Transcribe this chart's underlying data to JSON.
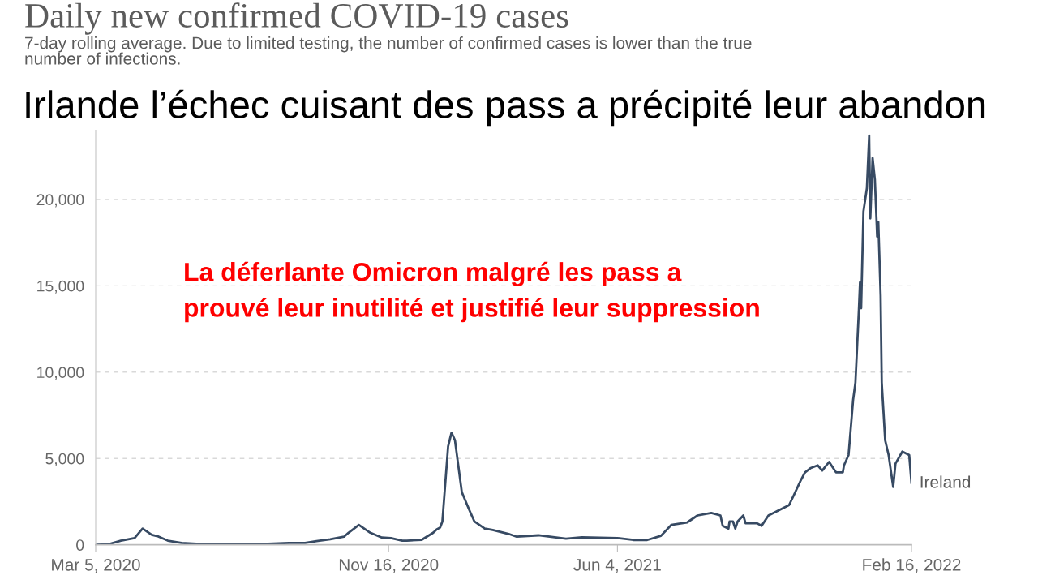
{
  "chart_data": {
    "type": "line",
    "title": "Daily new confirmed COVID-19 cases",
    "subtitle": "7-day rolling average. Due to limited testing, the number of confirmed cases is lower than the true\nnumber of infections.",
    "annotations": [
      "Irlande l’échec cuisant des pass a précipité leur abandon",
      "La déferlante Omicron malgré les pass a\nprouvé leur inutilité et justifié leur suppression"
    ],
    "x": [
      "2020-03-05",
      "2020-03-16",
      "2020-03-27",
      "2020-04-08",
      "2020-04-15",
      "2020-04-23",
      "2020-04-28",
      "2020-05-07",
      "2020-05-19",
      "2020-06-11",
      "2020-07-05",
      "2020-07-29",
      "2020-08-21",
      "2020-09-04",
      "2020-09-14",
      "2020-09-26",
      "2020-10-08",
      "2020-10-12",
      "2020-10-21",
      "2020-10-31",
      "2020-11-10",
      "2020-11-18",
      "2020-11-28",
      "2020-12-02",
      "2020-12-15",
      "2020-12-25",
      "2020-12-28",
      "2020-12-31",
      "2021-01-02",
      "2021-01-07",
      "2021-01-10",
      "2021-01-13",
      "2021-01-19",
      "2021-01-25",
      "2021-01-30",
      "2021-02-08",
      "2021-02-15",
      "2021-03-01",
      "2021-03-08",
      "2021-03-27",
      "2021-04-20",
      "2021-05-04",
      "2021-06-04",
      "2021-06-18",
      "2021-06-30",
      "2021-07-12",
      "2021-07-21",
      "2021-08-04",
      "2021-08-13",
      "2021-08-25",
      "2021-09-02",
      "2021-09-04",
      "2021-09-09",
      "2021-09-10",
      "2021-09-13",
      "2021-09-15",
      "2021-09-17",
      "2021-09-22",
      "2021-09-24",
      "2021-10-04",
      "2021-10-08",
      "2021-10-14",
      "2021-10-26",
      "2021-11-01",
      "2021-11-05",
      "2021-11-11",
      "2021-11-15",
      "2021-11-20",
      "2021-11-26",
      "2021-11-30",
      "2021-12-06",
      "2021-12-12",
      "2021-12-18",
      "2021-12-19",
      "2021-12-23",
      "2021-12-27",
      "2021-12-29",
      "2022-01-01",
      "2022-01-02",
      "2022-01-03",
      "2022-01-05",
      "2022-01-08",
      "2022-01-10",
      "2022-01-11",
      "2022-01-13",
      "2022-01-15",
      "2022-01-17",
      "2022-01-18",
      "2022-01-20",
      "2022-01-21",
      "2022-01-24",
      "2022-01-27",
      "2022-01-31",
      "2022-02-02",
      "2022-02-05",
      "2022-02-08",
      "2022-02-14",
      "2022-02-16"
    ],
    "series": [
      {
        "name": "Ireland",
        "color": "#374a63",
        "values": [
          0,
          30,
          240,
          390,
          940,
          580,
          500,
          240,
          110,
          20,
          10,
          50,
          110,
          110,
          210,
          320,
          470,
          700,
          1150,
          700,
          420,
          390,
          240,
          240,
          290,
          700,
          890,
          1000,
          1350,
          5700,
          6500,
          6050,
          3050,
          2100,
          1350,
          940,
          860,
          630,
          470,
          550,
          360,
          440,
          390,
          280,
          280,
          520,
          1150,
          1300,
          1700,
          1850,
          1700,
          1100,
          940,
          1350,
          1350,
          940,
          1350,
          1700,
          1250,
          1250,
          1100,
          1700,
          2100,
          2300,
          2850,
          3700,
          4200,
          4450,
          4600,
          4300,
          4800,
          4200,
          4200,
          4600,
          5200,
          8400,
          9400,
          13600,
          15200,
          13700,
          19300,
          20650,
          23700,
          18900,
          22400,
          21150,
          17850,
          18700,
          14450,
          9400,
          6050,
          5200,
          3350,
          4700,
          5050,
          5400,
          5200,
          3550
        ]
      }
    ],
    "xlim": [
      "2020-03-05",
      "2022-02-16"
    ],
    "xticks": [
      {
        "value": "2020-03-05",
        "label": "Mar 5, 2020"
      },
      {
        "value": "2020-11-16",
        "label": "Nov 16, 2020"
      },
      {
        "value": "2021-06-04",
        "label": "Jun 4, 2021"
      },
      {
        "value": "2022-02-16",
        "label": "Feb 16, 2022"
      }
    ],
    "ylim": [
      0,
      24000
    ],
    "yticks": [
      0,
      {
        "value": 5000,
        "label": "5,000"
      },
      {
        "value": 10000,
        "label": "10,000"
      },
      {
        "value": 15000,
        "label": "15,000"
      },
      {
        "value": 20000,
        "label": "20,000"
      }
    ],
    "grid": "y",
    "legend": false
  }
}
